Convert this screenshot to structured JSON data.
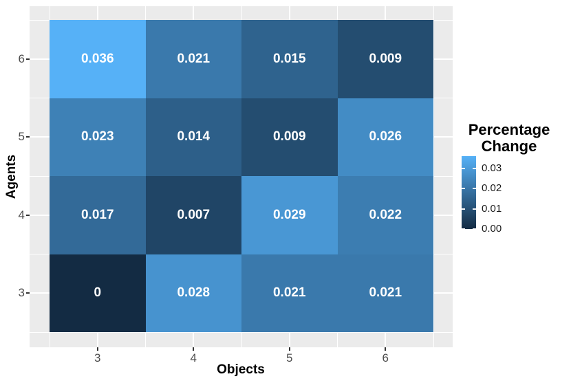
{
  "chart_data": {
    "type": "heatmap",
    "xlabel": "Objects",
    "ylabel": "Agents",
    "x_categories": [
      "3",
      "4",
      "5",
      "6"
    ],
    "y_categories_top_to_bottom": [
      "6",
      "5",
      "4",
      "3"
    ],
    "rows": [
      {
        "agents": 6,
        "labels": [
          "0.036",
          "0.021",
          "0.015",
          "0.009"
        ],
        "values": [
          0.036,
          0.021,
          0.015,
          0.009
        ]
      },
      {
        "agents": 5,
        "labels": [
          "0.023",
          "0.014",
          "0.009",
          "0.026"
        ],
        "values": [
          0.023,
          0.014,
          0.009,
          0.026
        ]
      },
      {
        "agents": 4,
        "labels": [
          "0.017",
          "0.007",
          "0.029",
          "0.022"
        ],
        "values": [
          0.017,
          0.007,
          0.029,
          0.022
        ]
      },
      {
        "agents": 3,
        "labels": [
          "0",
          "0.028",
          "0.021",
          "0.021"
        ],
        "values": [
          0,
          0.028,
          0.021,
          0.021
        ]
      }
    ],
    "legend": {
      "title_lines": [
        "Percentage",
        "Change"
      ],
      "ticks": [
        {
          "label": "0.03",
          "value": 0.03
        },
        {
          "label": "0.02",
          "value": 0.02
        },
        {
          "label": "0.01",
          "value": 0.01
        },
        {
          "label": "0.00",
          "value": 0.0
        }
      ],
      "vmin": 0,
      "vmax": 0.036,
      "position": "right"
    },
    "colors": {
      "low": "#132B43",
      "high": "#56B1F7",
      "panel_bg": "#EBEBEB",
      "grid": "#FFFFFF",
      "axis_tick": "#333333",
      "tick_label": "#4D4D4D",
      "cell_text": "#FFFFFF"
    },
    "grid": "major-and-minor",
    "xlim": [
      2.5,
      6.5
    ],
    "ylim": [
      2.5,
      6.5
    ]
  }
}
